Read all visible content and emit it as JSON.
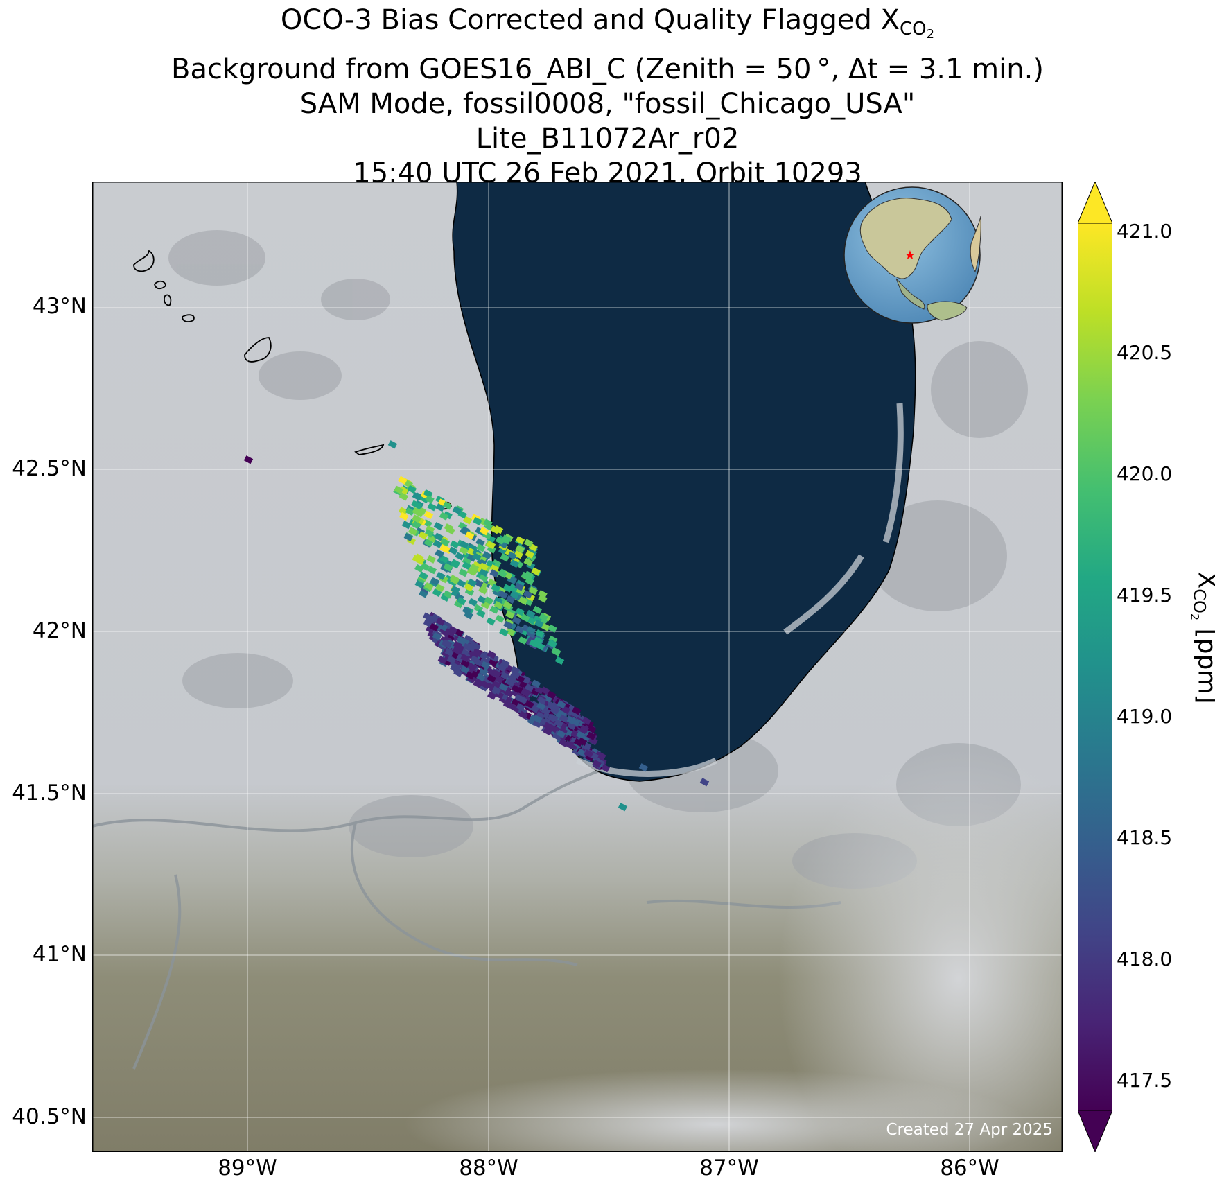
{
  "title": {
    "line1_pre": "OCO-3 Bias Corrected and Quality Flagged X",
    "line1_sub": "CO",
    "line1_subsub": "2",
    "line2": "Background from GOES16_ABI_C (Zenith = 50 °, Δt =  3.1 min.)",
    "line3": "SAM Mode, fossil0008, \"fossil_Chicago_USA\"",
    "line4": "Lite_B11072Ar_r02",
    "line5": "15:40 UTC 26 Feb 2021, Orbit 10293"
  },
  "lat_labels": [
    "43°N",
    "42.5°N",
    "42°N",
    "41.5°N",
    "41°N",
    "40.5°N"
  ],
  "lon_labels": [
    "89°W",
    "88°W",
    "87°W",
    "86°W"
  ],
  "credit": "Created 27 Apr 2025",
  "colorbar": {
    "ticks": [
      "421.0",
      "420.5",
      "420.0",
      "419.5",
      "419.0",
      "418.5",
      "418.0",
      "417.5"
    ],
    "label_pre": "X",
    "label_sub": "CO",
    "label_subsub": "2",
    "label_post": " [ppm]",
    "min": 417.2,
    "max": 421.2,
    "colormap": "viridis",
    "extend": "both"
  },
  "map_colors": {
    "lake": "#0f2b45",
    "land": "#c4c8cd",
    "ground_south": "#8a8a76",
    "marker": "#ff0000"
  },
  "chart_data": {
    "type": "map",
    "extent": {
      "lon_min": -89.65,
      "lon_max": -85.62,
      "lat_min": 40.39,
      "lat_max": 43.39
    },
    "lat_ticks": [
      43.0,
      42.5,
      42.0,
      41.5,
      41.0,
      40.5
    ],
    "lon_ticks": [
      -89,
      -88,
      -87,
      -86
    ],
    "grid": true,
    "inset_globe": "top-right",
    "inset_marker": "Chicago (red star)",
    "soundings_region": "Chicago metro, approx 41.45°N–42.52°N, 88.6°W–87.1°W",
    "xco2_range_ppm": [
      417.3,
      421.1
    ],
    "pattern": "northern swath mostly 419.5–421 ppm (yellow/green), southern swath mostly 417.3–418.2 ppm (purple)"
  }
}
